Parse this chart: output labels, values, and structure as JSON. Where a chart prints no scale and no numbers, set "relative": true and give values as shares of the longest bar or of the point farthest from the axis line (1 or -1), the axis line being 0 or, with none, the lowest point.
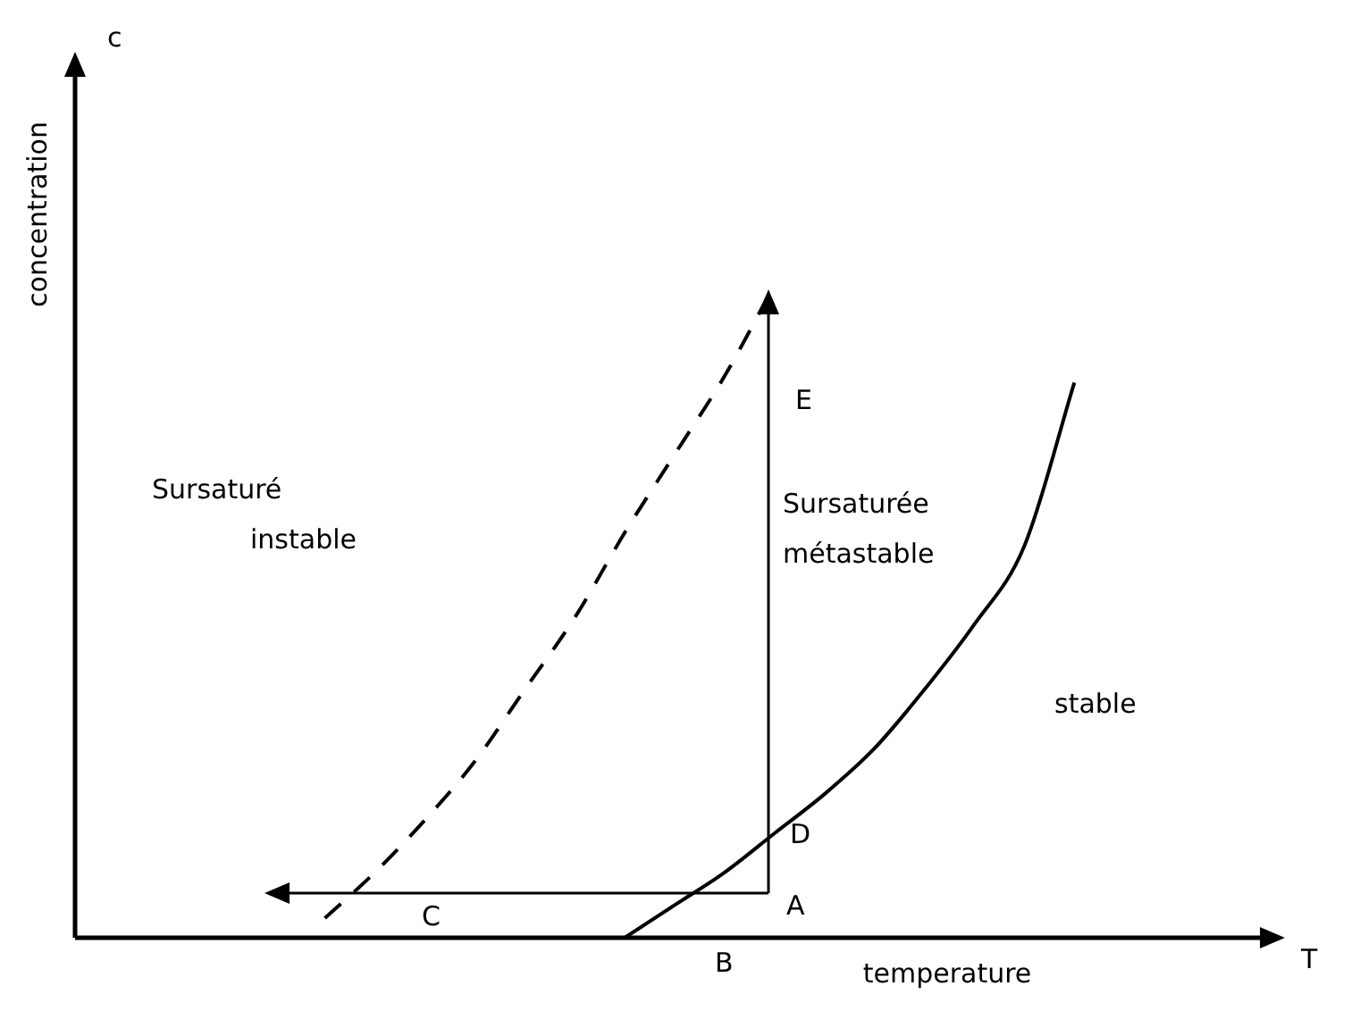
{
  "chart_data": {
    "type": "line",
    "relative": true,
    "tick_labels": false,
    "marker": "none",
    "ylabel": "concentration",
    "xlabel": "temperature",
    "categories": [
      null,
      null,
      null,
      null,
      null,
      null,
      null,
      null,
      null,
      null,
      null,
      null,
      null,
      null,
      null,
      null,
      null,
      null,
      null,
      null,
      null,
      null,
      null,
      null,
      null
    ],
    "series": [
      {
        "color": "#000000",
        "line_style": "solid",
        "values": [
          null,
          null,
          null,
          null,
          null,
          null,
          null,
          null,
          null,
          null,
          null,
          0,
          0.05,
          0.1,
          0.16,
          0.22,
          0.29,
          0.38,
          0.48,
          0.6,
          0.85,
          null,
          null,
          null,
          null
        ]
      },
      {
        "color": "#000000",
        "line_style": "dashed",
        "values": [
          null,
          null,
          null,
          null,
          null,
          0.03,
          0.1,
          0.18,
          0.27,
          0.38,
          0.49,
          0.62,
          0.74,
          0.86,
          1,
          null,
          null,
          null,
          null,
          null,
          null,
          null,
          null,
          null,
          null
        ]
      }
    ],
    "annotations": [
      "c",
      "T",
      "Sursaturé instable",
      "Sursaturée métastable",
      "stable",
      "A",
      "B",
      "C",
      "D",
      "E"
    ]
  }
}
